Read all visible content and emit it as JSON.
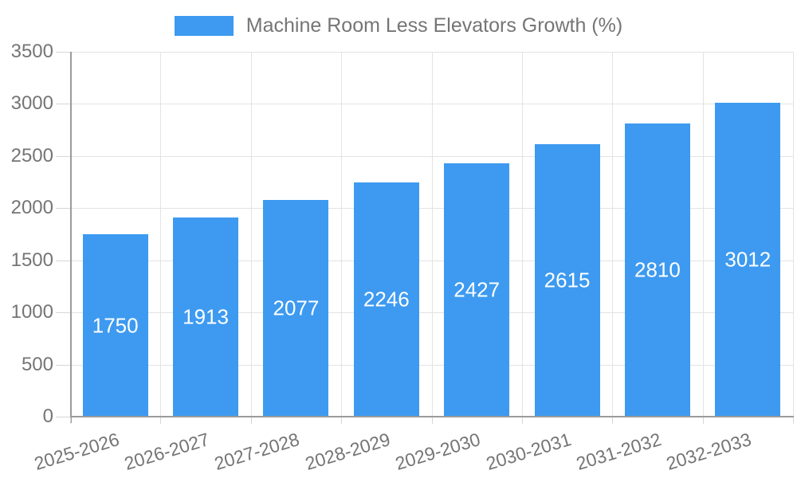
{
  "legend": {
    "label": "Machine Room Less Elevators Growth (%)"
  },
  "chart_data": {
    "type": "bar",
    "title": "Machine Room Less Elevators Growth (%)",
    "series": [
      {
        "name": "Machine Room Less Elevators Growth (%)",
        "values": [
          1750,
          1913,
          2077,
          2246,
          2427,
          2615,
          2810,
          3012
        ]
      }
    ],
    "categories": [
      "2025-2026",
      "2026-2027",
      "2027-2028",
      "2028-2029",
      "2029-2030",
      "2030-2031",
      "2031-2032",
      "2032-2033"
    ],
    "data_labels": [
      "1750",
      "1913",
      "2077",
      "2246",
      "2427",
      "2615",
      "2810",
      "3012"
    ],
    "xlabel": "",
    "ylabel": "",
    "ylim": [
      0,
      3500
    ],
    "ytick_step": 500,
    "yticks": [
      "0",
      "500",
      "1000",
      "1500",
      "2000",
      "2500",
      "3000",
      "3500"
    ],
    "grid": true,
    "legend_position": "top",
    "x_tick_rotation_deg": -17
  },
  "colors": {
    "bar": "#3d9af0",
    "bar_label": "#ffffff",
    "grid": "#e3e3e3",
    "axis_line": "#9b9b9b",
    "tick_text": "#757575",
    "legend_text": "#757575",
    "background": "#ffffff"
  }
}
